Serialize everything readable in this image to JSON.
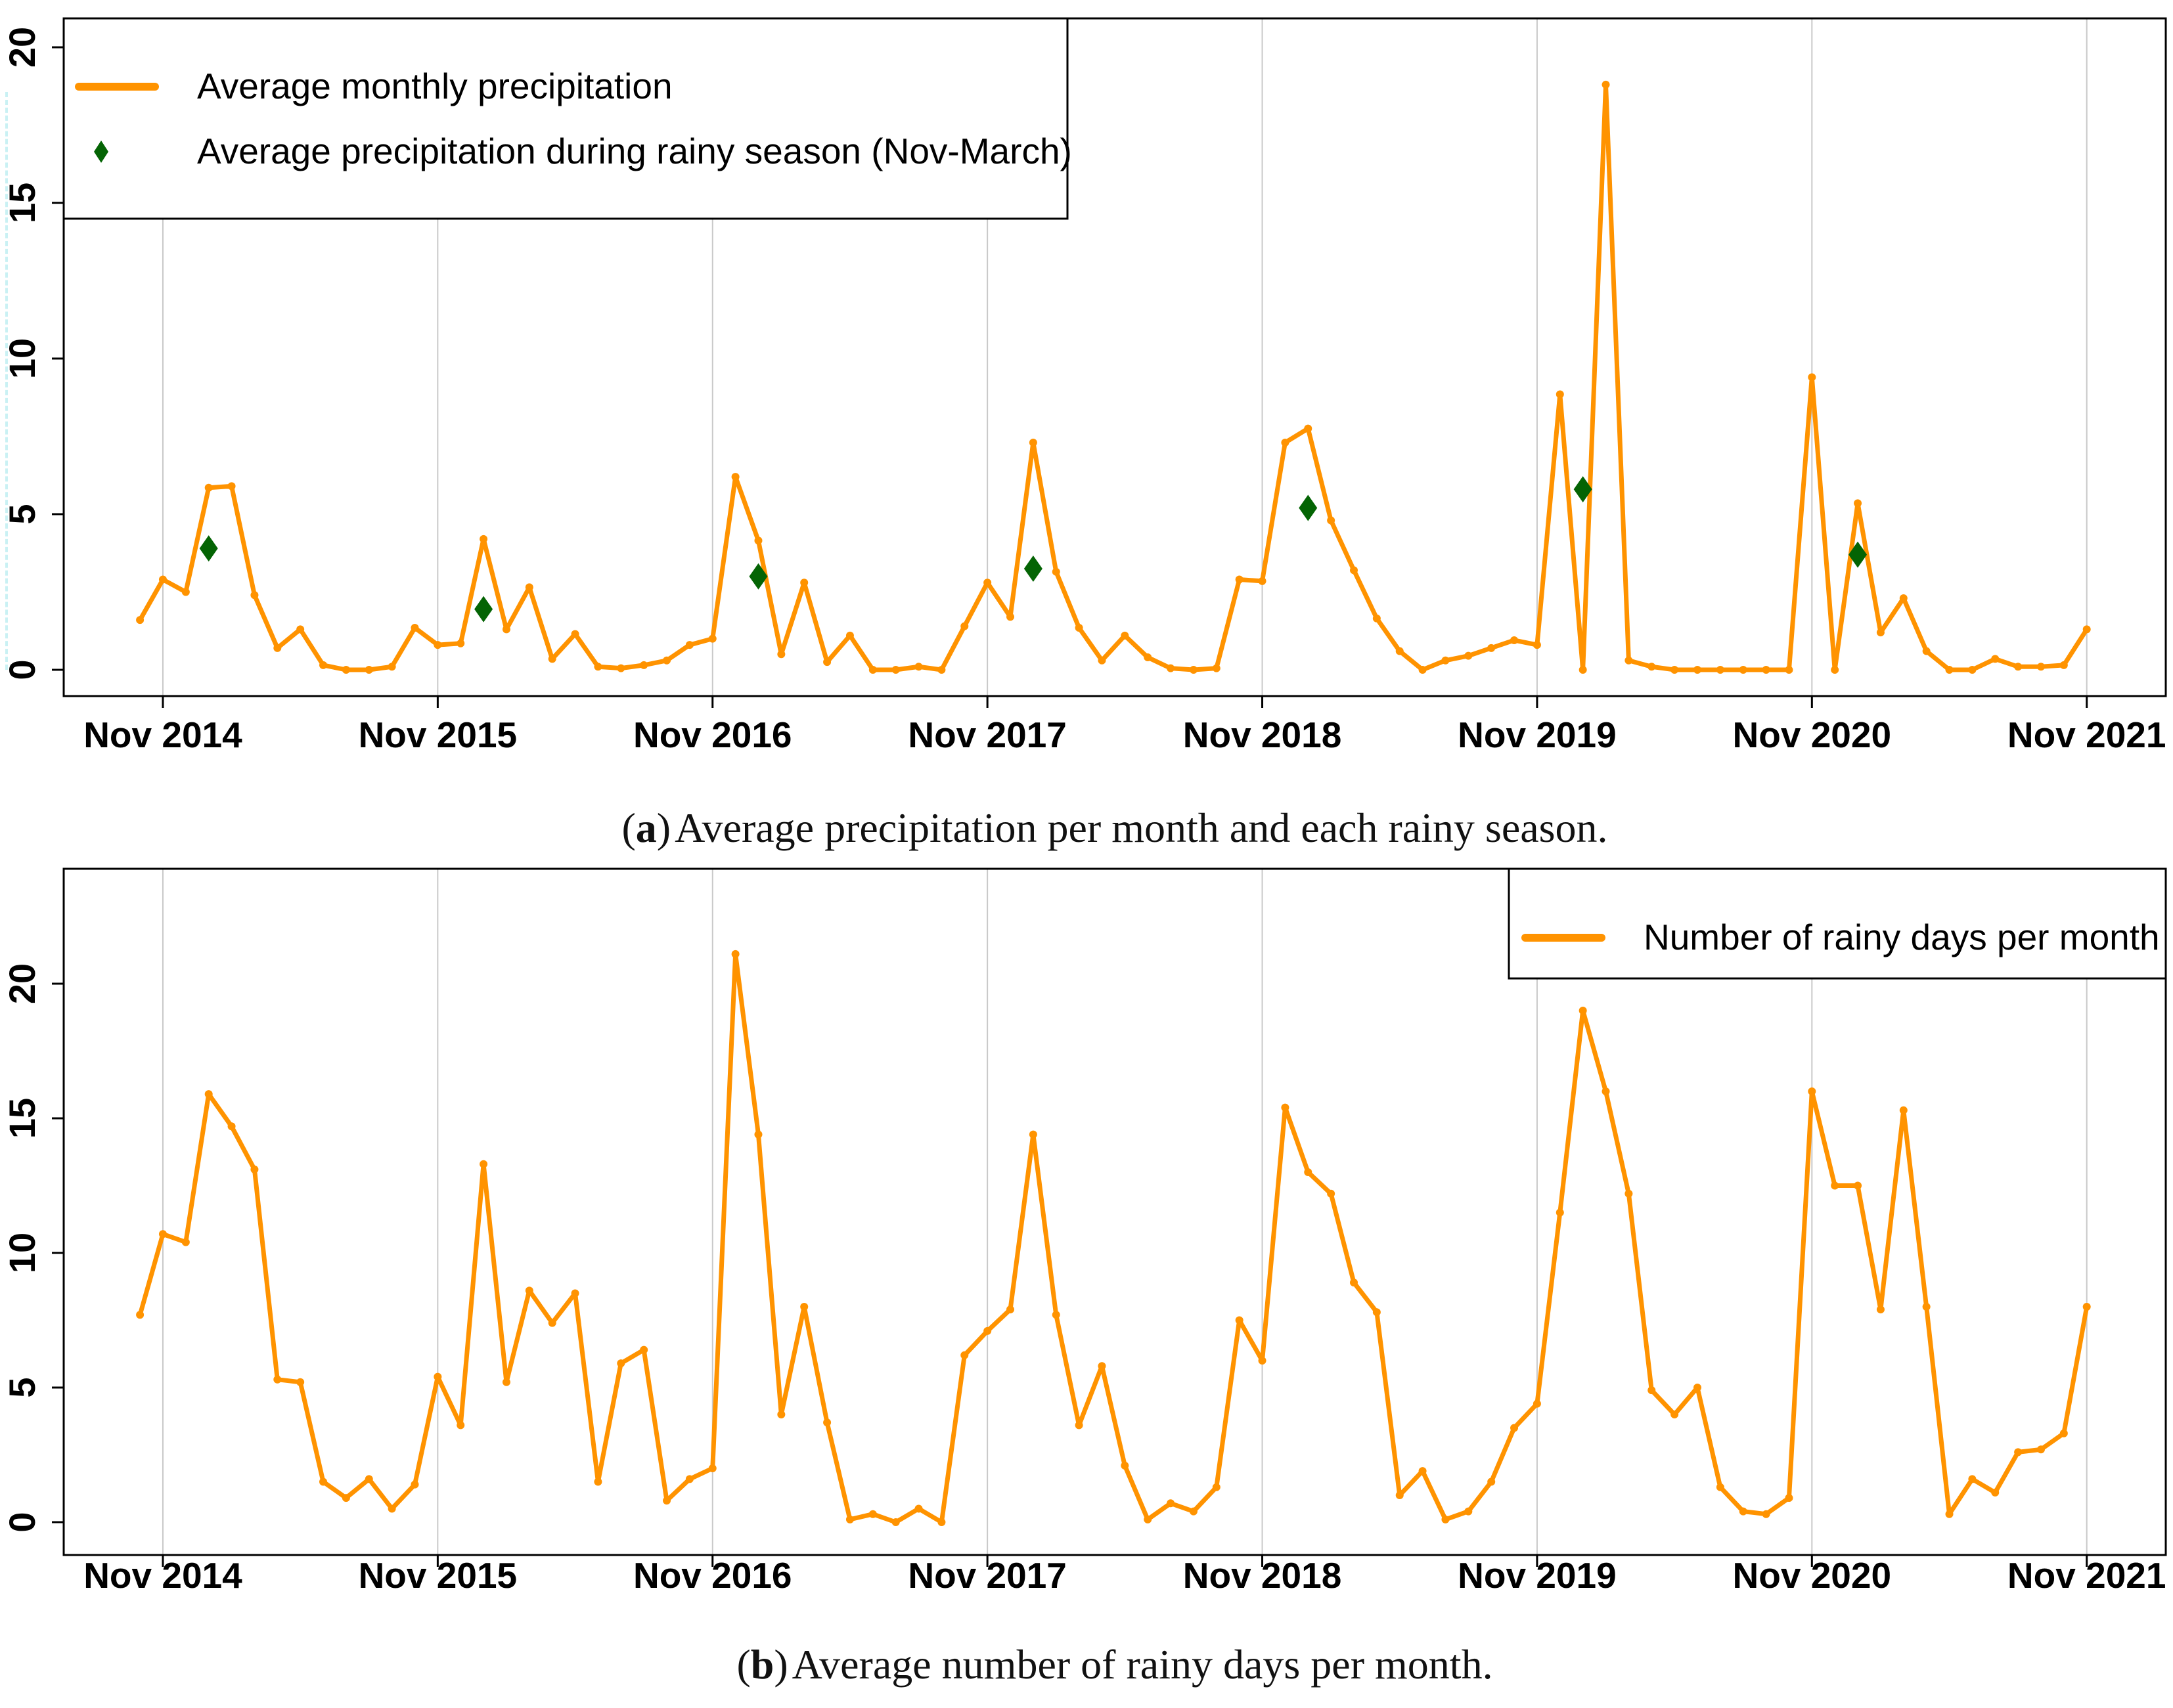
{
  "page": {
    "background": "#ffffff"
  },
  "captions": {
    "a": {
      "open": "(",
      "letter": "a",
      "close": ")",
      "text": "Average precipitation per month and each rainy season."
    },
    "b": {
      "open": "(",
      "letter": "b",
      "close": ")",
      "text": "Average number of rainy days per month."
    }
  },
  "chart_data": [
    {
      "type": "line",
      "panel": "a",
      "title": "(a) Average precipitation per month and each rainy season.",
      "x_start": "Oct 2014",
      "x_end": "Nov 2021",
      "x_ticks": [
        "Nov 2014",
        "Nov 2015",
        "Nov 2016",
        "Nov 2017",
        "Nov 2018",
        "Nov 2019",
        "Nov 2020",
        "Nov 2021"
      ],
      "y_ticks": [
        0,
        5,
        10,
        15,
        20
      ],
      "ylim": [
        0,
        20.9
      ],
      "grid": "vertical-yearly",
      "legend_position": "top-left",
      "legend": [
        {
          "swatch": "line",
          "color": "#FF9300",
          "label": "Average monthly precipitation"
        },
        {
          "swatch": "diamond",
          "color": "#046404",
          "label": "Average precipitation during rainy season (Nov-March)"
        }
      ],
      "series": [
        {
          "name": "Average monthly precipitation",
          "color": "#FF9300",
          "marker": "dot",
          "values": [
            1.6,
            2.9,
            2.5,
            5.85,
            5.9,
            2.4,
            0.7,
            1.3,
            0.15,
            0.0,
            0.0,
            0.1,
            1.35,
            0.8,
            0.85,
            4.2,
            1.3,
            2.65,
            0.35,
            1.15,
            0.1,
            0.05,
            0.15,
            0.3,
            0.8,
            1.0,
            6.2,
            4.15,
            0.5,
            2.8,
            0.25,
            1.1,
            0.0,
            0.0,
            0.1,
            0.0,
            1.4,
            2.8,
            1.7,
            7.3,
            3.15,
            1.35,
            0.3,
            1.1,
            0.4,
            0.05,
            0.0,
            0.05,
            2.9,
            2.85,
            7.3,
            7.75,
            4.8,
            3.2,
            1.65,
            0.6,
            0.0,
            0.3,
            0.45,
            0.7,
            0.95,
            0.8,
            8.85,
            0.0,
            18.8,
            0.3,
            0.1,
            0.0,
            0.0,
            0.0,
            0.0,
            0.0,
            0.0,
            9.4,
            0.0,
            5.35,
            1.2,
            2.3,
            0.6,
            0.0,
            0.0,
            0.35,
            0.1,
            0.1,
            0.15,
            1.3
          ]
        },
        {
          "name": "Average precipitation during rainy season (Nov-March)",
          "color": "#046404",
          "marker": "diamond",
          "month_offsets": [
            3,
            15,
            27,
            39,
            51,
            63,
            75
          ],
          "values": [
            3.9,
            1.95,
            3.0,
            3.25,
            5.2,
            5.8,
            3.7
          ]
        }
      ]
    },
    {
      "type": "line",
      "panel": "b",
      "title": "(b) Average number of rainy days per month.",
      "x_start": "Oct 2014",
      "x_end": "Nov 2021",
      "x_ticks": [
        "Nov 2014",
        "Nov 2015",
        "Nov 2016",
        "Nov 2017",
        "Nov 2018",
        "Nov 2019",
        "Nov 2020",
        "Nov 2021"
      ],
      "y_ticks": [
        0,
        5,
        10,
        15,
        20
      ],
      "ylim": [
        0,
        24.3
      ],
      "grid": "vertical-yearly",
      "legend_position": "top-right",
      "legend": [
        {
          "swatch": "line",
          "color": "#FF9300",
          "label": "Number of rainy days per month"
        }
      ],
      "series": [
        {
          "name": "Number of rainy days per month",
          "color": "#FF9300",
          "marker": "dot",
          "values": [
            7.7,
            10.7,
            10.4,
            15.9,
            14.7,
            13.1,
            5.3,
            5.2,
            1.5,
            0.9,
            1.6,
            0.5,
            1.4,
            5.4,
            3.6,
            13.3,
            5.2,
            8.6,
            7.4,
            8.5,
            1.5,
            5.9,
            6.4,
            0.8,
            1.6,
            2.0,
            21.1,
            14.4,
            4.0,
            8.0,
            3.7,
            0.1,
            0.3,
            0.0,
            0.5,
            0.0,
            6.2,
            7.1,
            7.9,
            14.4,
            7.7,
            3.6,
            5.8,
            2.1,
            0.1,
            0.7,
            0.4,
            1.3,
            7.5,
            6.0,
            15.4,
            13.0,
            12.2,
            8.9,
            7.8,
            1.0,
            1.9,
            0.1,
            0.4,
            1.5,
            3.5,
            4.4,
            11.5,
            19.0,
            16.0,
            12.2,
            4.9,
            4.0,
            5.0,
            1.3,
            0.4,
            0.3,
            0.9,
            16.0,
            12.5,
            12.5,
            7.9,
            15.3,
            8.0,
            0.3,
            1.6,
            1.1,
            2.6,
            2.7,
            3.3,
            8.0
          ]
        }
      ]
    }
  ],
  "style": {
    "line_color": "#FF9300",
    "diamond_color": "#046404",
    "grid_color": "#c9c9c9",
    "frame_color": "#000000",
    "text_color": "#000000"
  }
}
